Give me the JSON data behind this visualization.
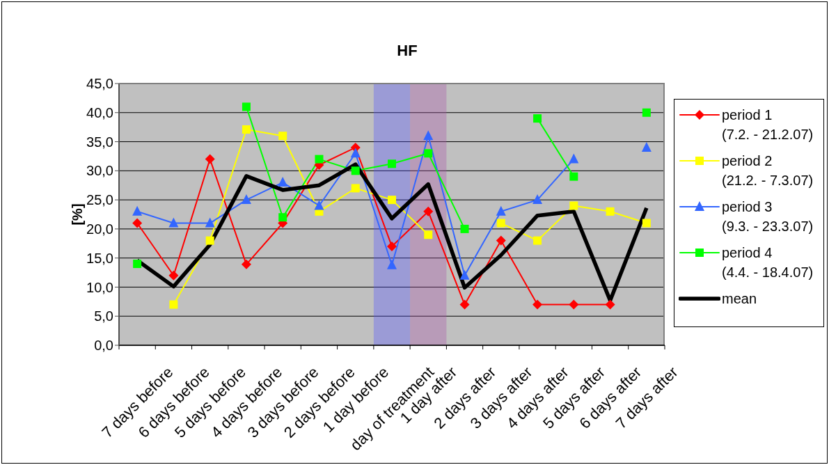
{
  "chart_data": {
    "type": "line",
    "title": "HF",
    "ylabel": "[%]",
    "categories": [
      "7 days before",
      "6 days before",
      "5 days before",
      "4 days before",
      "3 days before",
      "2 days before",
      "1 day before",
      "day of treatment",
      "1 day after",
      "2 days after",
      "3 days after",
      "4 days after",
      "5 days after",
      "6 days after",
      "7 days after"
    ],
    "series": [
      {
        "name": "period 1\n(7.2. - 21.2.07)",
        "color": "#ff0000",
        "marker": "diamond",
        "values": [
          21,
          12,
          32,
          13.9,
          21,
          31,
          34,
          17,
          23,
          7,
          18,
          7,
          7,
          7,
          null
        ]
      },
      {
        "name": "period 2\n(21.2. - 7.3.07)",
        "color": "#ffff00",
        "marker": "square",
        "values": [
          null,
          7,
          18,
          37.1,
          36,
          23,
          27,
          25,
          19,
          null,
          21,
          18,
          24,
          23,
          21
        ]
      },
      {
        "name": "period 3\n(9.3. - 23.3.07)",
        "color": "#3366ff",
        "marker": "triangle",
        "values": [
          23,
          21,
          21,
          25,
          28,
          24,
          33,
          13.8,
          36,
          12,
          23,
          25,
          32,
          null,
          34
        ]
      },
      {
        "name": "period 4\n(4.4. - 18.4.07)",
        "color": "#00ff00",
        "marker": "square",
        "values": [
          14,
          null,
          null,
          41,
          22,
          32,
          30,
          31.2,
          33,
          20,
          null,
          39,
          29,
          null,
          40
        ]
      },
      {
        "name": "mean",
        "color": "#000000",
        "marker": "none",
        "values": [
          14.6,
          10.1,
          17.3,
          29.1,
          26.7,
          27.5,
          31.1,
          21.8,
          27.7,
          9.9,
          15.5,
          22.3,
          23,
          7.7,
          23.6
        ]
      }
    ],
    "ylim": [
      0,
      45
    ],
    "yticks": [
      {
        "value": 0,
        "label": "0,0"
      },
      {
        "value": 5,
        "label": "5,0"
      },
      {
        "value": 10,
        "label": "10,0"
      },
      {
        "value": 15,
        "label": "15,0"
      },
      {
        "value": 20,
        "label": "20,0"
      },
      {
        "value": 25,
        "label": "25,0"
      },
      {
        "value": 30,
        "label": "30,0"
      },
      {
        "value": 35,
        "label": "35,0"
      },
      {
        "value": 40,
        "label": "40,0"
      },
      {
        "value": 45,
        "label": "45,0"
      }
    ],
    "grid": "y",
    "legend": "right",
    "bands": [
      {
        "axis": "x",
        "from": "day of treatment",
        "to": "day of treatment",
        "color": "#5555ff"
      },
      {
        "axis": "x",
        "from": "1 day after",
        "to": "1 day after",
        "color": "#aa55aa"
      }
    ]
  }
}
